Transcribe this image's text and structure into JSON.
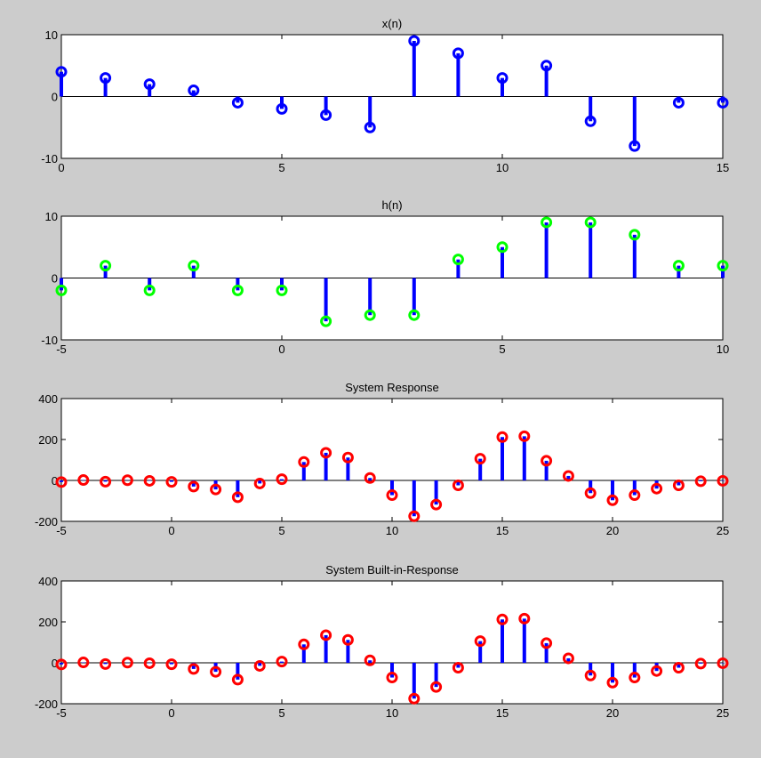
{
  "figure": {
    "background": "#cccccc"
  },
  "chart_data": [
    {
      "type": "stem",
      "title": "x(n)",
      "xlim": [
        0,
        15
      ],
      "ylim": [
        -10,
        10
      ],
      "xticks": [
        0,
        5,
        10,
        15
      ],
      "yticks": [
        -10,
        0,
        10
      ],
      "stem_color": "#0000ff",
      "marker_color": "#0000ff",
      "x": [
        0,
        1,
        2,
        3,
        4,
        5,
        6,
        7,
        8,
        9,
        10,
        11,
        12,
        13,
        14,
        15
      ],
      "y": [
        4,
        3,
        2,
        1,
        -1,
        -2,
        -3,
        -5,
        9,
        7,
        3,
        5,
        -4,
        -8,
        -1,
        -1
      ]
    },
    {
      "type": "stem",
      "title": "h(n)",
      "xlim": [
        -5,
        10
      ],
      "ylim": [
        -10,
        10
      ],
      "xticks": [
        -5,
        0,
        5,
        10
      ],
      "yticks": [
        -10,
        0,
        10
      ],
      "stem_color": "#0000ff",
      "marker_color": "#00ff00",
      "x": [
        -5,
        -4,
        -3,
        -2,
        -1,
        0,
        1,
        2,
        3,
        4,
        5,
        6,
        7,
        8,
        9,
        10
      ],
      "y": [
        -2,
        2,
        -2,
        2,
        -2,
        -2,
        -7,
        -6,
        -6,
        3,
        5,
        9,
        9,
        7,
        2,
        2
      ]
    },
    {
      "type": "stem",
      "title": "System Response",
      "xlim": [
        -5,
        25
      ],
      "ylim": [
        -200,
        400
      ],
      "xticks": [
        -5,
        0,
        5,
        10,
        15,
        20,
        25
      ],
      "yticks": [
        -200,
        0,
        200,
        400
      ],
      "stem_color": "#0000ff",
      "marker_color": "#ff0000",
      "x": [
        -5,
        -4,
        -3,
        -2,
        -1,
        0,
        1,
        2,
        3,
        4,
        5,
        6,
        7,
        8,
        9,
        10,
        11,
        12,
        13,
        14,
        15,
        16,
        17,
        18,
        19,
        20,
        21,
        22,
        23,
        24,
        25
      ],
      "y": [
        -8,
        2,
        -6,
        1,
        -2,
        -7,
        -30,
        -44,
        -82,
        -15,
        6,
        90,
        135,
        112,
        12,
        -72,
        -175,
        -118,
        -24,
        106,
        212,
        216,
        96,
        22,
        -62,
        -97,
        -72,
        -40,
        -24,
        -4,
        -2
      ]
    },
    {
      "type": "stem",
      "title": "System Built-in-Response",
      "xlim": [
        -5,
        25
      ],
      "ylim": [
        -200,
        400
      ],
      "xticks": [
        -5,
        0,
        5,
        10,
        15,
        20,
        25
      ],
      "yticks": [
        -200,
        0,
        200,
        400
      ],
      "stem_color": "#0000ff",
      "marker_color": "#ff0000",
      "x": [
        -5,
        -4,
        -3,
        -2,
        -1,
        0,
        1,
        2,
        3,
        4,
        5,
        6,
        7,
        8,
        9,
        10,
        11,
        12,
        13,
        14,
        15,
        16,
        17,
        18,
        19,
        20,
        21,
        22,
        23,
        24,
        25
      ],
      "y": [
        -8,
        2,
        -6,
        1,
        -2,
        -7,
        -30,
        -44,
        -82,
        -15,
        6,
        90,
        135,
        112,
        12,
        -72,
        -175,
        -118,
        -24,
        106,
        212,
        216,
        96,
        22,
        -62,
        -97,
        -72,
        -40,
        -24,
        -4,
        -2
      ]
    }
  ]
}
